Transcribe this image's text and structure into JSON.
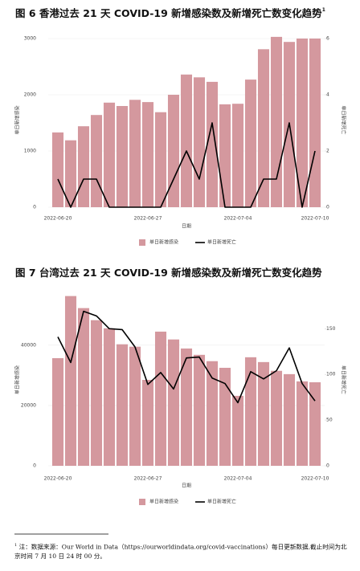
{
  "chart_data": [
    {
      "type": "combo",
      "title": "图 6 香港过去 21 天 COVID-19 新增感染数及新增死亡数变化趋势",
      "title_note": "1",
      "xlabel": "日期",
      "ylabel": "单日新增感染",
      "y2label": "单日新增死亡",
      "categories": [
        "2022-06-20",
        null,
        null,
        null,
        null,
        null,
        null,
        "2022-06-27",
        null,
        null,
        null,
        null,
        null,
        null,
        "2022-07-04",
        null,
        null,
        null,
        null,
        null,
        "2022-07-10"
      ],
      "series": [
        {
          "name": "单日新增感染",
          "type": "bar",
          "color": "#d4989e",
          "values": [
            1330,
            1190,
            1440,
            1640,
            1860,
            1800,
            1910,
            1870,
            1690,
            2000,
            2360,
            2310,
            2230,
            1830,
            1840,
            2270,
            2810,
            3030,
            2940,
            3000,
            3000
          ]
        },
        {
          "name": "单日新增死亡",
          "type": "line",
          "color": "#000000",
          "axis": "y2",
          "values": [
            1,
            0,
            1,
            1,
            0,
            0,
            0,
            0,
            0,
            1,
            2,
            1,
            3,
            0,
            0,
            0,
            1,
            1,
            3,
            0,
            2
          ]
        }
      ],
      "ylim": [
        0,
        3100
      ],
      "yticks": [
        0,
        1000,
        2000,
        3000
      ],
      "y2lim": [
        0,
        6.2
      ],
      "y2ticks": [
        0,
        2,
        4,
        6
      ],
      "grid": true,
      "legend": "bottom"
    },
    {
      "type": "combo",
      "title": "图 7 台湾过去 21 天 COVID-19 新增感染数及新增死亡数变化趋势",
      "xlabel": "日期",
      "ylabel": "单日新增感染",
      "y2label": "单日新增死亡",
      "categories": [
        "2022-06-20",
        null,
        null,
        null,
        null,
        null,
        null,
        "2022-06-27",
        null,
        null,
        null,
        null,
        null,
        null,
        "2022-07-04",
        null,
        null,
        null,
        null,
        null,
        "2022-07-10"
      ],
      "series": [
        {
          "name": "单日新增感染",
          "type": "bar",
          "color": "#d4989e",
          "values": [
            35700,
            56300,
            52300,
            48300,
            45600,
            40300,
            39500,
            28500,
            44500,
            41900,
            38900,
            36800,
            34700,
            32500,
            23200,
            36000,
            34400,
            31500,
            30400,
            28000,
            27700
          ]
        },
        {
          "name": "单日新增死亡",
          "type": "line",
          "color": "#000000",
          "axis": "y2",
          "values": [
            141,
            113,
            169,
            164,
            150,
            149,
            130,
            89,
            102,
            84,
            118,
            119,
            96,
            90,
            69,
            103,
            95,
            104,
            129,
            90,
            71
          ]
        }
      ],
      "ylim": [
        0,
        57000
      ],
      "yticks": [
        0,
        20000,
        40000
      ],
      "y2lim": [
        0,
        188
      ],
      "y2ticks": [
        0,
        50,
        100,
        150
      ],
      "grid": true,
      "legend": "bottom"
    }
  ],
  "footnote": {
    "marker": "1",
    "text": "注：数据来源：Our World in Data（https://ourworldindata.org/covid-vaccinations）每日更新数据,截止时间为北京时间 7 月 10 日 24 时 00 分。"
  }
}
